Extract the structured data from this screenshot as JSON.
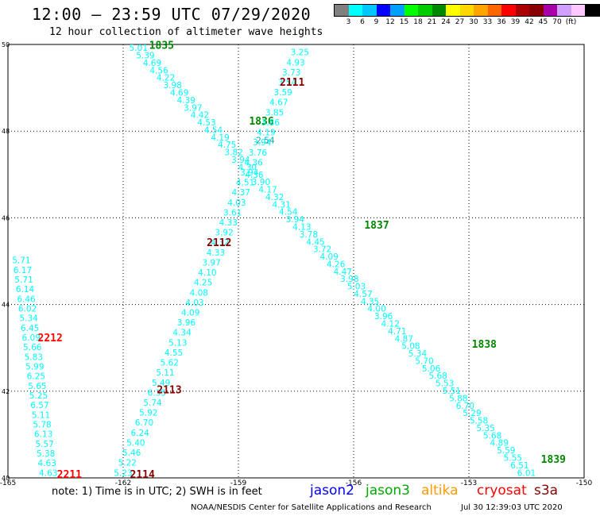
{
  "header": {
    "title": "12:00 – 23:59 UTC 07/29/2020",
    "subtitle": "12 hour collection of altimeter wave heights"
  },
  "legend": {
    "colors": [
      "#808080",
      "#00ffff",
      "#00c8ff",
      "#0000ff",
      "#00a0ff",
      "#00ff00",
      "#00cc00",
      "#008800",
      "#ffff00",
      "#ffd700",
      "#ffa500",
      "#ff6600",
      "#ff0000",
      "#aa0000",
      "#880000",
      "#aa00aa",
      "#d0a0ff",
      "#ffc8ff",
      "#000000"
    ],
    "labels": [
      "3",
      "6",
      "9",
      "12",
      "15",
      "18",
      "21",
      "24",
      "27",
      "30",
      "33",
      "36",
      "39",
      "42",
      "45",
      "70",
      "(ft)"
    ]
  },
  "chart_data": {
    "type": "map-track-labels",
    "x_axis": {
      "range": [
        -165,
        -150
      ],
      "ticks": [
        -165,
        -162,
        -159,
        -156,
        -153,
        -150
      ],
      "tick_labels": [
        "-165",
        "-162",
        "-159",
        "-156",
        "-153",
        "-150"
      ]
    },
    "y_axis": {
      "range": [
        40,
        50
      ],
      "ticks": [
        40,
        42,
        44,
        46,
        48,
        50
      ],
      "tick_labels": [
        "40",
        "42",
        "44",
        "46",
        "48",
        "50"
      ]
    },
    "grid": "dotted",
    "value_color": "#00ffff",
    "tracks": [
      {
        "time_labels": [
          {
            "text": "1835",
            "lon": -161.0,
            "lat": 49.9,
            "color": "#008800"
          },
          {
            "text": "1836",
            "lon": -158.4,
            "lat": 48.15,
            "color": "#008800"
          },
          {
            "text": "1837",
            "lon": -155.4,
            "lat": 45.75,
            "color": "#008800"
          },
          {
            "text": "1838",
            "lon": -152.6,
            "lat": 43.0,
            "color": "#008800"
          },
          {
            "text": "1839",
            "lon": -150.8,
            "lat": 40.35,
            "color": "#008800"
          }
        ],
        "start": [
          -161.6,
          49.85
        ],
        "end": [
          -151.5,
          40.05
        ],
        "values": [
          "5.01",
          "5.39",
          "4.69",
          "4.56",
          "4.22",
          "3.98",
          "4.69",
          "4.39",
          "3.97",
          "4.42",
          "4.53",
          "4.54",
          "4.19",
          "4.75",
          "3.82",
          "3.94",
          "4.30",
          "4.36",
          "3.90",
          "4.17",
          "4.32",
          "4.31",
          "4.54",
          "3.94",
          "4.13",
          "3.78",
          "4.45",
          "3.72",
          "4.09",
          "4.26",
          "4.47",
          "3.98",
          "5.03",
          "4.57",
          "4.35",
          "4.00",
          "3.96",
          "4.12",
          "4.71",
          "4.87",
          "5.08",
          "5.34",
          "5.70",
          "5.06",
          "5.68",
          "5.53",
          "5.51",
          "5.88",
          "6.70",
          "5.29",
          "5.58",
          "5.35",
          "5.68",
          "4.89",
          "5.59",
          "5.55",
          "6.51",
          "6.01"
        ]
      },
      {
        "time_labels": [
          {
            "text": "2111",
            "lon": -157.6,
            "lat": 49.05,
            "color": "#880000"
          },
          {
            "text": "2112",
            "lon": -159.5,
            "lat": 45.35,
            "color": "#880000"
          },
          {
            "text": "2113",
            "lon": -160.8,
            "lat": 41.95,
            "color": "#880000"
          },
          {
            "text": "2114",
            "lon": -161.5,
            "lat": 40.0,
            "color": "#880000"
          }
        ],
        "start": [
          -157.4,
          49.75
        ],
        "end": [
          -162.0,
          40.05
        ],
        "values": [
          "3.25",
          "4.93",
          "3.73",
          "3.54",
          "3.59",
          "4.67",
          "3.85",
          "3.86",
          "4.19",
          "3.94",
          "3.76",
          "4.36",
          "3.94",
          "4.51",
          "4.37",
          "4.03",
          "3.61",
          "4.33",
          "3.92",
          "4.32",
          "4.33",
          "3.97",
          "4.10",
          "4.25",
          "4.08",
          "4.03",
          "4.09",
          "3.96",
          "4.34",
          "5.13",
          "4.55",
          "5.62",
          "5.11",
          "5.49",
          "6.35",
          "5.74",
          "5.92",
          "6.70",
          "6.24",
          "5.40",
          "5.46",
          "5.22",
          "5.23"
        ]
      },
      {
        "time_labels": [
          {
            "text": "2212",
            "lon": -163.9,
            "lat": 43.15,
            "color": "#ff0000"
          },
          {
            "text": "2211",
            "lon": -163.4,
            "lat": 40.0,
            "color": "#ff0000"
          }
        ],
        "start": [
          -164.65,
          44.95
        ],
        "end": [
          -163.95,
          40.05
        ],
        "values": [
          "5.71",
          "6.17",
          "5.71",
          "6.14",
          "6.46",
          "6.02",
          "5.34",
          "6.45",
          "6.09",
          "5.66",
          "5.83",
          "5.99",
          "6.25",
          "5.65",
          "5.25",
          "6.57",
          "5.11",
          "5.78",
          "6.13",
          "5.57",
          "5.38",
          "4.63",
          "4.63"
        ]
      }
    ],
    "center_value": {
      "text": "2.54",
      "lon": -158.3,
      "lat": 47.72,
      "color": "#00aaaa"
    }
  },
  "footer": {
    "note": "note: 1) Time is in UTC; 2) SWH is in feet",
    "satellites": [
      {
        "name": "jason2",
        "color": "#0000ff"
      },
      {
        "name": "jason3",
        "color": "#00aa00"
      },
      {
        "name": "altika",
        "color": "#ff9900"
      },
      {
        "name": "cryosat",
        "color": "#ff0000"
      },
      {
        "name": "s3a",
        "color": "#880000"
      }
    ],
    "credit": "NOAA/NESDIS Center for Satellite Applications and Research",
    "timestamp": "Jul 30 12:39:03 UTC 2020"
  }
}
